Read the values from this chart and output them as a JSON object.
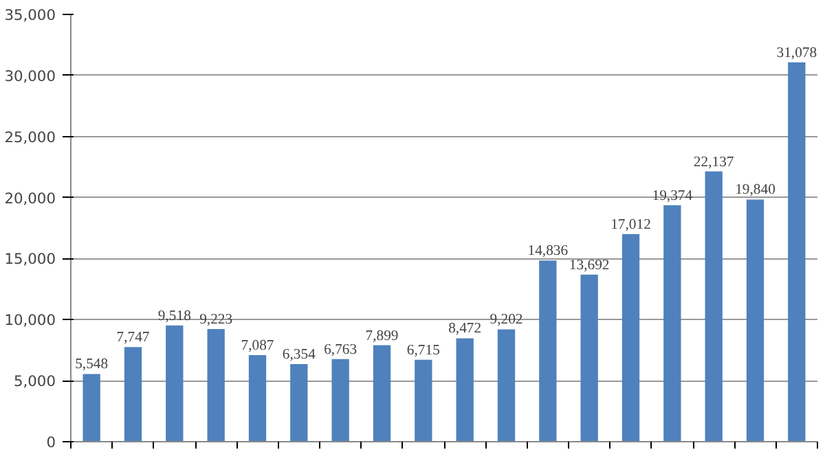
{
  "chart_data": {
    "type": "bar",
    "categories": [
      null,
      null,
      null,
      null,
      null,
      null,
      null,
      null,
      null,
      null,
      null,
      null,
      null,
      null,
      null,
      null,
      null,
      null
    ],
    "values": [
      5548,
      7747,
      9518,
      9223,
      7087,
      6354,
      6763,
      7899,
      6715,
      8472,
      9202,
      14836,
      13692,
      17012,
      19374,
      22137,
      19840,
      31078
    ],
    "color": "#4f81bd",
    "ylim": [
      0,
      35000
    ],
    "yticks": [
      {
        "value": 0,
        "label": "0"
      },
      {
        "value": 5000,
        "label": "5,000"
      },
      {
        "value": 10000,
        "label": "10,000"
      },
      {
        "value": 15000,
        "label": "15,000"
      },
      {
        "value": 20000,
        "label": "20,000"
      },
      {
        "value": 25000,
        "label": "25,000"
      },
      {
        "value": 30000,
        "label": "30,000"
      },
      {
        "value": 35000,
        "label": "35,000"
      }
    ],
    "grid": "y",
    "value_labels": [
      "5,548",
      "7,747",
      "9,518",
      "9,223",
      "7,087",
      "6,354",
      "6,763",
      "7,899",
      "6,715",
      "8,472",
      "9,202",
      "14,836",
      "13,692",
      "17,012",
      "19,374",
      "22,137",
      "19,840",
      "31,078"
    ]
  }
}
